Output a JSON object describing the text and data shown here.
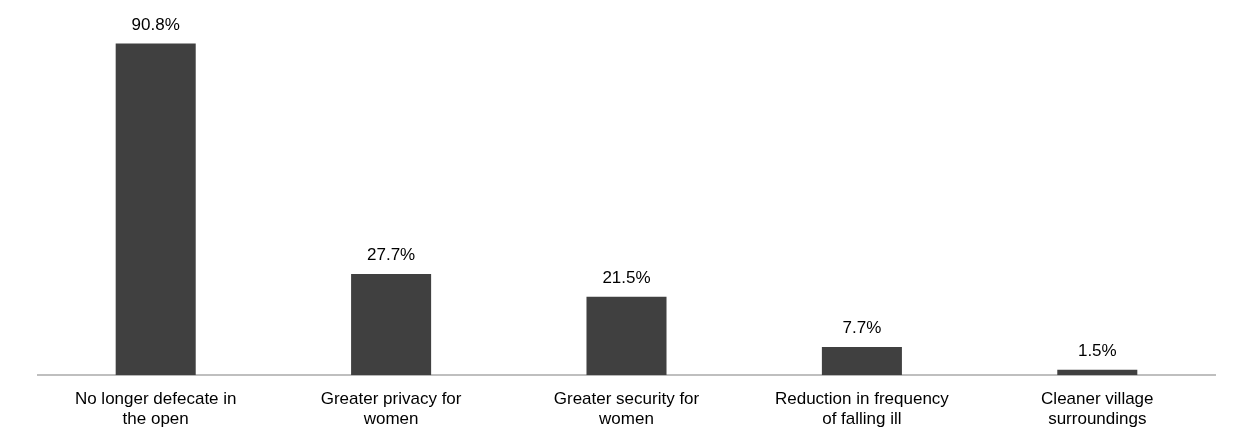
{
  "chart_data": {
    "type": "bar",
    "categories": [
      "No longer defecate in the open",
      "Greater privacy for women",
      "Greater security for women",
      "Reduction in frequency of falling ill",
      "Cleaner village surroundings"
    ],
    "values": [
      90.8,
      27.7,
      21.5,
      7.7,
      1.5
    ],
    "value_labels": [
      "90.8%",
      "27.7%",
      "21.5%",
      "7.7%",
      "1.5%"
    ],
    "color": "#404040",
    "grid": false,
    "legend": false,
    "tick_labels": "x"
  }
}
